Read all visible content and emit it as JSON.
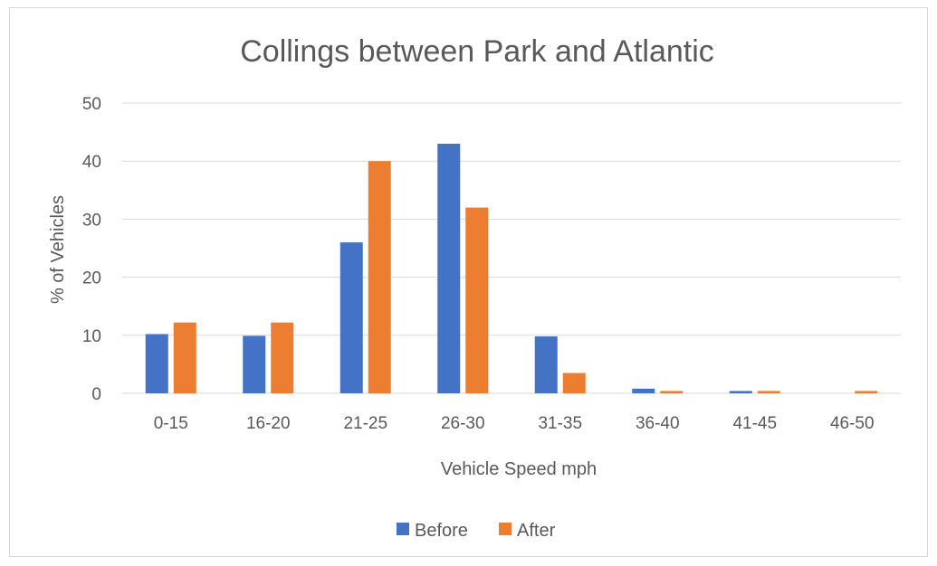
{
  "chart_data": {
    "type": "bar",
    "title": "Collings between Park and Atlantic",
    "xlabel": "Vehicle Speed mph",
    "ylabel": "% of Vehicles",
    "ylim": [
      0,
      50
    ],
    "yticks": [
      0,
      10,
      20,
      30,
      40,
      50
    ],
    "grid": true,
    "legend_position": "bottom",
    "categories": [
      "0-15",
      "16-20",
      "21-25",
      "26-30",
      "31-35",
      "36-40",
      "41-45",
      "46-50"
    ],
    "series": [
      {
        "name": "Before",
        "color": "#4472c4",
        "values": [
          10.2,
          9.9,
          26,
          43,
          9.8,
          0.8,
          0.4,
          0
        ]
      },
      {
        "name": "After",
        "color": "#ed7d31",
        "values": [
          12.2,
          12.2,
          40,
          32,
          3.5,
          0.4,
          0.4,
          0.4
        ]
      }
    ]
  }
}
